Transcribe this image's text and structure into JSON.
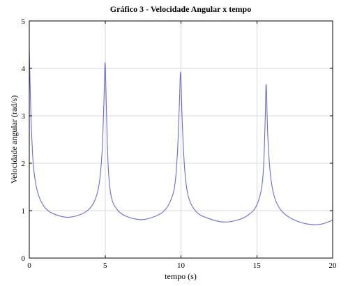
{
  "chart_data": {
    "type": "line",
    "title": "Gráfico 3 - Velocidade Angular x tempo",
    "xlabel": "tempo (s)",
    "ylabel": "Velocidade angular (rad/s)",
    "xlim": [
      0,
      20
    ],
    "ylim": [
      0,
      5
    ],
    "xticks": [
      0,
      5,
      10,
      15,
      20
    ],
    "yticks": [
      0,
      1,
      2,
      3,
      4,
      5
    ],
    "grid": true,
    "color": "#6a6ae0",
    "series": [
      {
        "x": [
          0,
          0.1,
          0.2,
          0.3,
          0.5,
          0.8,
          1.2,
          1.7,
          2.5,
          3.3,
          3.9,
          4.3,
          4.6,
          4.8,
          4.92,
          5.0,
          5.08,
          5.2,
          5.4,
          5.8,
          6.4,
          7.4,
          8.3,
          8.9,
          9.3,
          9.6,
          9.78,
          9.9,
          9.98,
          10.08,
          10.25,
          10.5,
          11.0,
          11.7,
          12.8,
          13.9,
          14.6,
          15.0,
          15.3,
          15.45,
          15.55,
          15.62,
          15.72,
          15.9,
          16.2,
          16.7,
          17.5,
          18.5,
          19.3,
          20.0
        ],
        "y": [
          4.38,
          3.1,
          2.3,
          1.85,
          1.45,
          1.18,
          1.01,
          0.92,
          0.86,
          0.91,
          1.02,
          1.2,
          1.55,
          2.25,
          3.3,
          4.12,
          3.2,
          1.95,
          1.3,
          1.02,
          0.88,
          0.81,
          0.88,
          1.0,
          1.2,
          1.55,
          2.3,
          3.3,
          3.91,
          2.9,
          1.85,
          1.28,
          0.98,
          0.85,
          0.76,
          0.82,
          0.95,
          1.12,
          1.45,
          1.95,
          2.9,
          3.66,
          2.6,
          1.75,
          1.25,
          0.97,
          0.8,
          0.71,
          0.72,
          0.8
        ]
      }
    ]
  }
}
